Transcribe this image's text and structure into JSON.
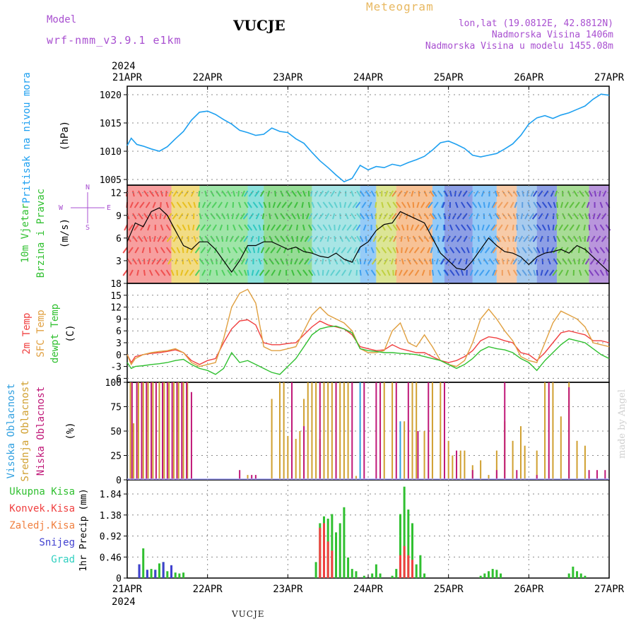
{
  "header": {
    "model_label": "Model",
    "model_name": "wrf-nmm_v3.9.1 e1km",
    "station": "VUCJE",
    "meteogram_label": "Meteogram",
    "lonlat": "lon,lat (19.0812E, 42.8812N)",
    "elevation": "Nadmorska Visina 1406m",
    "model_elevation": "Nadmorska Visina u modelu 1455.08m",
    "watermark": "made by Angel"
  },
  "footer": {
    "station": "VUCJE"
  },
  "colors": {
    "pressure": "#1ea0f0",
    "temp2m": "#f04040",
    "sfc_temp": "#e0a040",
    "dewpt": "#30c030",
    "cloud_high": "#30a0e0",
    "cloud_mid": "#d0a030",
    "cloud_low": "#c01878",
    "precip_total": "#30c030",
    "precip_conv": "#f04040",
    "precip_frozen": "#f08040",
    "precip_snow": "#4040d0",
    "precip_grad": "#30d0c0"
  },
  "chart_data": [
    {
      "type": "line",
      "title": "",
      "ylabel": "Pritisak na nivou mora",
      "units": "(hPa)",
      "year": "2024",
      "x_ticks": [
        "21APR",
        "22APR",
        "23APR",
        "24APR",
        "25APR",
        "26APR",
        "27APR"
      ],
      "y_ticks": [
        1005,
        1010,
        1015,
        1020
      ],
      "xlim": [
        0,
        6
      ],
      "ylim": [
        1004,
        1021.5
      ],
      "series": [
        {
          "key": "pressure",
          "x": [
            0,
            0.05,
            0.12,
            0.2,
            0.3,
            0.4,
            0.5,
            0.6,
            0.7,
            0.8,
            0.9,
            1.0,
            1.1,
            1.2,
            1.3,
            1.4,
            1.5,
            1.6,
            1.7,
            1.8,
            1.9,
            2.0,
            2.1,
            2.2,
            2.3,
            2.4,
            2.5,
            2.6,
            2.7,
            2.8,
            2.9,
            3.0,
            3.1,
            3.2,
            3.3,
            3.4,
            3.5,
            3.6,
            3.7,
            3.8,
            3.9,
            4.0,
            4.1,
            4.2,
            4.3,
            4.4,
            4.5,
            4.6,
            4.7,
            4.8,
            4.9,
            5.0,
            5.1,
            5.2,
            5.3,
            5.4,
            5.5,
            5.6,
            5.7,
            5.8,
            5.9,
            6.0
          ],
          "values": [
            1011,
            1012.3,
            1011.2,
            1010.9,
            1010.4,
            1010.0,
            1010.8,
            1012.2,
            1013.5,
            1015.5,
            1016.9,
            1017.1,
            1016.5,
            1015.6,
            1014.8,
            1013.7,
            1013.3,
            1012.8,
            1013.0,
            1014.1,
            1013.5,
            1013.3,
            1012.2,
            1011.4,
            1009.8,
            1008.3,
            1007.1,
            1005.8,
            1004.6,
            1005.2,
            1007.5,
            1006.7,
            1007.3,
            1007.1,
            1007.7,
            1007.4,
            1008.0,
            1008.5,
            1009.1,
            1010.2,
            1011.5,
            1011.8,
            1011.2,
            1010.5,
            1009.3,
            1009.0,
            1009.3,
            1009.6,
            1010.4,
            1011.3,
            1012.8,
            1014.8,
            1015.9,
            1016.3,
            1015.8,
            1016.4,
            1016.8,
            1017.4,
            1018.0,
            1019.2,
            1020.1,
            1019.9
          ]
        }
      ]
    },
    {
      "type": "line",
      "title": "",
      "ylabel_1": "10m Vjetar",
      "ylabel_2": "Brzina i Pravac",
      "units": "(m/s)",
      "compass": {
        "N": "N",
        "S": "S",
        "E": "E",
        "W": "W"
      },
      "y_ticks": [
        3,
        6,
        9,
        12
      ],
      "xlim": [
        0,
        6
      ],
      "ylim": [
        0,
        13
      ],
      "series": [
        {
          "key": "wind_speed",
          "x": [
            0,
            0.1,
            0.2,
            0.3,
            0.4,
            0.5,
            0.6,
            0.7,
            0.8,
            0.9,
            1.0,
            1.1,
            1.2,
            1.3,
            1.4,
            1.5,
            1.6,
            1.7,
            1.8,
            1.9,
            2.0,
            2.1,
            2.2,
            2.3,
            2.4,
            2.5,
            2.6,
            2.7,
            2.8,
            2.9,
            3.0,
            3.1,
            3.2,
            3.3,
            3.4,
            3.5,
            3.6,
            3.7,
            3.8,
            3.9,
            4.0,
            4.1,
            4.2,
            4.3,
            4.4,
            4.5,
            4.6,
            4.7,
            4.8,
            4.9,
            5.0,
            5.1,
            5.2,
            5.3,
            5.4,
            5.5,
            5.6,
            5.7,
            5.8,
            5.9,
            6.0
          ],
          "values": [
            5.5,
            8.0,
            7.5,
            9.5,
            10.0,
            9.0,
            7.0,
            5.0,
            4.5,
            5.5,
            5.5,
            4.5,
            3.0,
            1.5,
            3.0,
            5.0,
            5.0,
            5.5,
            5.5,
            5.0,
            4.5,
            4.8,
            4.2,
            4.0,
            3.6,
            3.4,
            4.0,
            3.2,
            2.8,
            4.8,
            5.5,
            7.0,
            7.8,
            8.0,
            9.5,
            9.0,
            8.5,
            8.0,
            6.0,
            4.0,
            3.0,
            2.0,
            1.8,
            3.0,
            4.5,
            6.0,
            5.0,
            4.2,
            4.0,
            3.5,
            2.5,
            3.5,
            4.0,
            4.2,
            4.5,
            4.0,
            5.0,
            4.5,
            3.5,
            2.5,
            1.5
          ]
        }
      ]
    },
    {
      "type": "line",
      "title": "",
      "ylabel_1": "2m Temp",
      "ylabel_2": "SFC Temp",
      "ylabel_3": "dewpt Temp",
      "units": "(C)",
      "y_ticks": [
        -6,
        -3,
        0,
        3,
        6,
        9,
        12,
        15,
        18
      ],
      "xlim": [
        0,
        6
      ],
      "ylim": [
        -7,
        18
      ],
      "x": [
        0,
        0.05,
        0.1,
        0.2,
        0.3,
        0.4,
        0.5,
        0.6,
        0.7,
        0.8,
        0.9,
        1.0,
        1.1,
        1.2,
        1.3,
        1.4,
        1.5,
        1.6,
        1.7,
        1.8,
        1.9,
        2.0,
        2.1,
        2.2,
        2.3,
        2.4,
        2.5,
        2.6,
        2.7,
        2.8,
        2.9,
        3.0,
        3.1,
        3.2,
        3.3,
        3.4,
        3.5,
        3.6,
        3.7,
        3.8,
        3.9,
        4.0,
        4.1,
        4.2,
        4.3,
        4.4,
        4.5,
        4.6,
        4.7,
        4.8,
        4.9,
        5.0,
        5.1,
        5.2,
        5.3,
        5.4,
        5.5,
        5.6,
        5.7,
        5.8,
        5.9,
        6.0
      ],
      "series": [
        {
          "key": "temp2m",
          "values": [
            0,
            -2,
            -0.5,
            0,
            0.3,
            0.5,
            0.8,
            1.2,
            0.5,
            -1.5,
            -2.5,
            -1.5,
            -1.0,
            3.0,
            6.5,
            8.5,
            8.8,
            7.5,
            3.0,
            2.5,
            2.5,
            2.8,
            3.0,
            5.0,
            7.0,
            8.5,
            7.5,
            7.0,
            6.5,
            5.0,
            2.0,
            1.5,
            1.0,
            1.2,
            2.5,
            1.5,
            1.0,
            0.5,
            0.5,
            -0.5,
            -1.5,
            -2.0,
            -1.5,
            -0.5,
            1.0,
            3.5,
            4.5,
            4.2,
            3.5,
            3.0,
            0.5,
            0.0,
            -1.5,
            0.5,
            3.0,
            5.5,
            6.0,
            5.5,
            5.0,
            3.5,
            3.5,
            3.0
          ]
        },
        {
          "key": "sfc_temp",
          "values": [
            0,
            -2.5,
            -1,
            0,
            0.5,
            0.8,
            1.0,
            1.5,
            0.5,
            -2.0,
            -3.0,
            -2.5,
            -2.0,
            4.0,
            12.0,
            15.5,
            16.5,
            13.0,
            2.0,
            1.0,
            1.0,
            1.5,
            2.0,
            6.0,
            10.0,
            12.0,
            10.0,
            9.0,
            8.0,
            6.0,
            1.5,
            0.5,
            0.5,
            1.0,
            6.0,
            8.0,
            3.0,
            2.0,
            5.0,
            2.0,
            -1.5,
            -2.5,
            -3.0,
            -1.5,
            3.0,
            9.0,
            11.5,
            9.0,
            6.0,
            3.5,
            -0.5,
            -1.5,
            -2.0,
            3.0,
            8.0,
            11.0,
            10.0,
            9.0,
            7.0,
            3.0,
            2.5,
            2.0
          ]
        },
        {
          "key": "dewpt",
          "values": [
            -2,
            -3.5,
            -3,
            -2.8,
            -2.5,
            -2.3,
            -2.0,
            -1.5,
            -1.2,
            -2.5,
            -3.5,
            -4.0,
            -5.0,
            -3.5,
            0.5,
            -2.0,
            -1.5,
            -2.5,
            -3.5,
            -4.5,
            -5.0,
            -3.0,
            -1.0,
            2.0,
            5.0,
            6.5,
            7.0,
            7.2,
            6.5,
            5.5,
            1.5,
            1.0,
            0.8,
            0.5,
            0.5,
            0.3,
            0.2,
            0.0,
            -0.5,
            -1.0,
            -1.5,
            -2.5,
            -3.5,
            -2.5,
            -1.0,
            1.0,
            2.0,
            1.5,
            1.2,
            0.5,
            -1.0,
            -2.0,
            -4.0,
            -1.5,
            0.5,
            2.5,
            4.0,
            3.5,
            3.0,
            1.5,
            0.0,
            -1.0
          ]
        }
      ]
    },
    {
      "type": "bar",
      "title": "",
      "ylabel_1": "Visoka Oblacnost",
      "ylabel_2": "Srednja Oblacnost",
      "ylabel_3": "Niska Oblacnost",
      "units": "(%)",
      "y_ticks": [
        0,
        25,
        50,
        75,
        100
      ],
      "xlim": [
        0,
        6
      ],
      "ylim": [
        0,
        100
      ],
      "series": [
        {
          "key": "cloud_mid",
          "x": [
            0.04,
            0.08,
            0.14,
            0.2,
            0.26,
            0.32,
            0.4,
            0.46,
            0.52,
            0.58,
            0.64,
            0.7,
            0.75,
            1.5,
            1.8,
            1.9,
            1.95,
            2.0,
            2.1,
            2.15,
            2.2,
            2.25,
            2.3,
            2.35,
            2.4,
            2.45,
            2.5,
            2.55,
            2.6,
            2.65,
            2.7,
            2.75,
            2.85,
            3.2,
            3.3,
            3.45,
            3.55,
            3.6,
            3.7,
            3.8,
            3.9,
            4.0,
            4.05,
            4.15,
            4.2,
            4.3,
            4.4,
            4.5,
            4.6,
            4.7,
            4.8,
            4.9,
            4.95,
            5.1,
            5.2,
            5.3,
            5.4,
            5.5,
            5.6,
            5.7
          ],
          "values": [
            100,
            58,
            100,
            100,
            100,
            100,
            100,
            100,
            100,
            100,
            100,
            100,
            100,
            5,
            83,
            100,
            100,
            45,
            42,
            50,
            83,
            100,
            100,
            100,
            42,
            100,
            100,
            100,
            100,
            100,
            100,
            100,
            4,
            100,
            100,
            60,
            100,
            100,
            50,
            100,
            100,
            40,
            25,
            30,
            30,
            15,
            20,
            5,
            30,
            60,
            40,
            55,
            35,
            30,
            100,
            100,
            65,
            100,
            40,
            35
          ]
        },
        {
          "key": "cloud_low",
          "x": [
            0.06,
            0.12,
            0.18,
            0.24,
            0.3,
            0.36,
            0.44,
            0.5,
            0.56,
            0.62,
            0.68,
            0.74,
            0.8,
            1.4,
            1.55,
            1.6,
            2.05,
            2.2,
            2.4,
            2.6,
            2.8,
            2.95,
            3.1,
            3.15,
            3.35,
            3.5,
            3.62,
            3.75,
            3.95,
            4.1,
            4.3,
            4.6,
            4.7,
            4.85,
            5.1,
            5.25,
            5.5,
            5.75,
            5.85,
            5.95
          ],
          "values": [
            100,
            100,
            100,
            100,
            100,
            100,
            100,
            100,
            100,
            100,
            100,
            100,
            90,
            10,
            5,
            5,
            100,
            55,
            100,
            100,
            100,
            100,
            100,
            100,
            100,
            100,
            50,
            100,
            100,
            30,
            10,
            10,
            100,
            10,
            5,
            100,
            95,
            10,
            10,
            10
          ]
        },
        {
          "key": "cloud_high",
          "x": [
            2.9,
            3.4
          ],
          "values": [
            100,
            60
          ]
        }
      ]
    },
    {
      "type": "bar",
      "title": "",
      "legend_1": "Ukupna Kisa",
      "legend_2": "Konvek.Kisa",
      "legend_3": "Zaledj.Kisa",
      "legend_4": "Snijeg",
      "legend_5": "Grad",
      "ylabel": "1hr Precip (mm)",
      "y_ticks": [
        "0",
        "0.46",
        "0.92",
        "1.38",
        "1.84"
      ],
      "xlim": [
        0,
        6
      ],
      "ylim": [
        0,
        2.15
      ],
      "series": [
        {
          "key": "precip_total",
          "x": [
            0.15,
            0.2,
            0.25,
            0.3,
            0.35,
            0.4,
            0.45,
            0.5,
            0.55,
            0.6,
            0.65,
            0.7,
            2.35,
            2.4,
            2.45,
            2.5,
            2.55,
            2.6,
            2.65,
            2.7,
            2.75,
            2.8,
            2.85,
            2.95,
            3.05,
            3.1,
            3.15,
            3.3,
            3.35,
            3.4,
            3.45,
            3.5,
            3.55,
            3.6,
            3.65,
            3.7,
            4.4,
            4.45,
            4.5,
            4.55,
            4.6,
            4.65,
            5.5,
            5.55,
            5.6,
            5.65,
            5.7
          ],
          "values": [
            0.3,
            0.65,
            0.18,
            0.2,
            0.18,
            0.32,
            0.35,
            0.15,
            0.28,
            0.12,
            0.1,
            0.12,
            0.35,
            1.2,
            1.35,
            1.3,
            1.4,
            1.0,
            1.2,
            1.55,
            0.45,
            0.2,
            0.15,
            0.05,
            0.1,
            0.3,
            0.1,
            0.05,
            0.2,
            1.4,
            2.0,
            1.5,
            1.2,
            0.3,
            0.5,
            0.1,
            0.05,
            0.1,
            0.15,
            0.2,
            0.18,
            0.1,
            0.1,
            0.25,
            0.15,
            0.1,
            0.05
          ]
        },
        {
          "key": "precip_conv",
          "x": [
            2.4,
            2.45,
            2.5,
            2.55,
            3.4,
            3.45,
            3.5,
            3.55
          ],
          "values": [
            1.1,
            1.2,
            0.8,
            0.6,
            0.5,
            0.7,
            0.5,
            0.4
          ]
        },
        {
          "key": "precip_snow",
          "x": [
            0.15,
            0.25,
            0.35,
            0.45,
            0.55
          ],
          "values": [
            0.3,
            0.18,
            0.18,
            0.35,
            0.28
          ]
        }
      ]
    }
  ]
}
